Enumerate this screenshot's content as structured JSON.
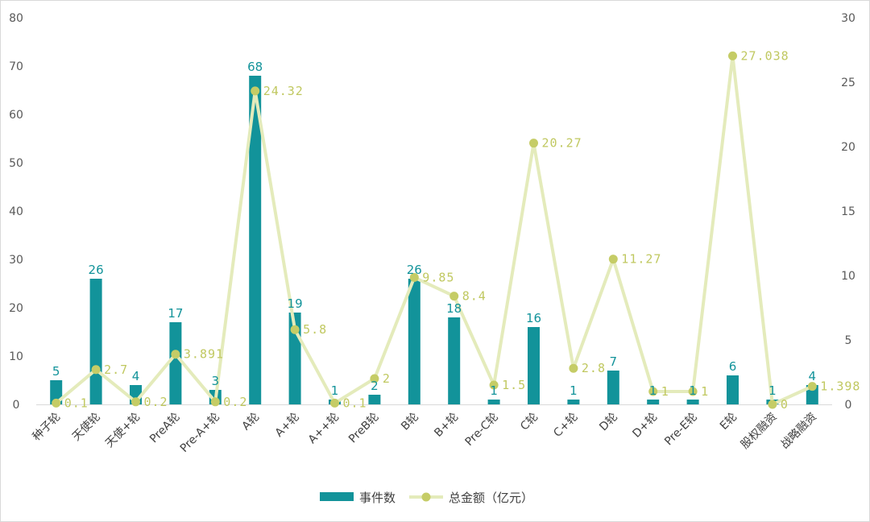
{
  "chart_data": {
    "type": "bar",
    "title": "",
    "categories": [
      "种子轮",
      "天使轮",
      "天使+轮",
      "PreA轮",
      "Pre-A+轮",
      "A轮",
      "A+轮",
      "A++轮",
      "PreB轮",
      "B轮",
      "B+轮",
      "Pre-C轮",
      "C轮",
      "C+轮",
      "D轮",
      "D+轮",
      "Pre-E轮",
      "E轮",
      "股权融资",
      "战略融资"
    ],
    "series": [
      {
        "name": "事件数",
        "type": "bar",
        "axis": "left",
        "color": "#12939a",
        "values": [
          5,
          26,
          4,
          17,
          3,
          68,
          19,
          1,
          2,
          26,
          18,
          1,
          16,
          1,
          7,
          1,
          1,
          6,
          1,
          4
        ],
        "labels": [
          "5",
          "26",
          "4",
          "17",
          "3",
          "68",
          "19",
          "1",
          "2",
          "26",
          "18",
          "1",
          "16",
          "1",
          "7",
          "1",
          "1",
          "6",
          "1",
          "4"
        ]
      },
      {
        "name": "总金额（亿元）",
        "type": "line",
        "axis": "right",
        "color": "#e4ebbb",
        "marker_color": "#c5cc66",
        "values": [
          0.1,
          2.7,
          0.2,
          3.891,
          0.2,
          24.32,
          5.8,
          0.1,
          2,
          9.85,
          8.4,
          1.5,
          20.27,
          2.8,
          11.27,
          1,
          1,
          27.038,
          0,
          1.398
        ],
        "labels": [
          "0.1",
          "2.7",
          "0.2",
          "3.891",
          "0.2",
          "24.32",
          "5.8",
          "0.1",
          "2",
          "9.85",
          "8.4",
          "1.5",
          "20.27",
          "2.8",
          "11.27",
          "1",
          "1",
          "27.038",
          "0",
          "1.398"
        ]
      }
    ],
    "left_axis": {
      "ylim": [
        0,
        80
      ],
      "ticks": [
        "0",
        "10",
        "20",
        "30",
        "40",
        "50",
        "60",
        "70",
        "80"
      ]
    },
    "right_axis": {
      "ylim": [
        0,
        30
      ],
      "ticks": [
        "0",
        "5",
        "10",
        "15",
        "20",
        "25",
        "30"
      ]
    },
    "legend": {
      "position": "bottom",
      "items": [
        "事件数",
        "总金额（亿元）"
      ]
    },
    "grid": false
  }
}
